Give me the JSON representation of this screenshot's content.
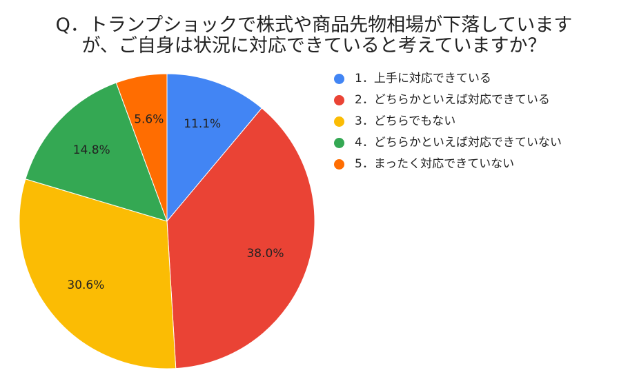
{
  "chart_data": {
    "type": "pie",
    "title_lines": [
      "Q．トランプショックで株式や商品先物相場が下落しています",
      "が、ご自身は状況に対応できていると考えていますか？"
    ],
    "categories": [
      "1．上手に対応できている",
      "2．どちらかといえば対応できている",
      "3．どちらでもない",
      "4．どちらかといえば対応できていない",
      "5．まったく対応できていない"
    ],
    "values": [
      11.1,
      38.0,
      30.6,
      14.8,
      5.6
    ],
    "data_labels": [
      "11.1%",
      "38.0%",
      "30.6%",
      "14.8%",
      "5.6%"
    ],
    "colors": [
      "#4285F4",
      "#EA4335",
      "#FBBC04",
      "#34A853",
      "#FF6D01"
    ],
    "legend_position": "right"
  }
}
